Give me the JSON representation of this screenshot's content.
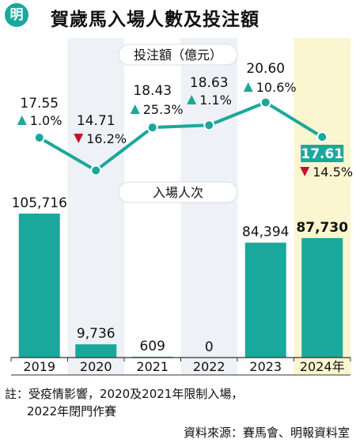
{
  "header": {
    "logo_text": "明",
    "title": "賀歲馬入場人數及投注額"
  },
  "colors": {
    "accent": "#1aa89c",
    "up": "#1aa89c",
    "down": "#c8102e",
    "highlight_column": "#fbf6cf",
    "shade_column": "#eef1f5"
  },
  "chart_data": [
    {
      "type": "line",
      "title": "投注額（億元）",
      "categories": [
        "2019",
        "2020",
        "2021",
        "2022",
        "2023",
        "2024年"
      ],
      "values": [
        17.55,
        14.71,
        18.43,
        18.63,
        20.6,
        17.61
      ],
      "value_labels": [
        "17.55",
        "14.71",
        "18.43",
        "18.63",
        "20.60",
        "17.61"
      ],
      "changes": [
        {
          "direction": "up",
          "text": "1.0%"
        },
        {
          "direction": "down",
          "text": "16.2%"
        },
        {
          "direction": "up",
          "text": "25.3%"
        },
        {
          "direction": "up",
          "text": "1.1%"
        },
        {
          "direction": "up",
          "text": "10.6%"
        },
        {
          "direction": "down",
          "text": "14.5%"
        }
      ]
    },
    {
      "type": "bar",
      "title": "入場人次",
      "categories": [
        "2019",
        "2020",
        "2021",
        "2022",
        "2023",
        "2024年"
      ],
      "values": [
        105716,
        9736,
        609,
        0,
        84394,
        87730
      ],
      "value_labels": [
        "105,716",
        "9,736",
        "609",
        "0",
        "84,394",
        "87,730"
      ]
    }
  ],
  "note": {
    "line1": "註：受疫情影響，2020及2021年限制入場，",
    "line2": "2022年閉門作賽"
  },
  "source": "資料來源：賽馬會、明報資料室"
}
